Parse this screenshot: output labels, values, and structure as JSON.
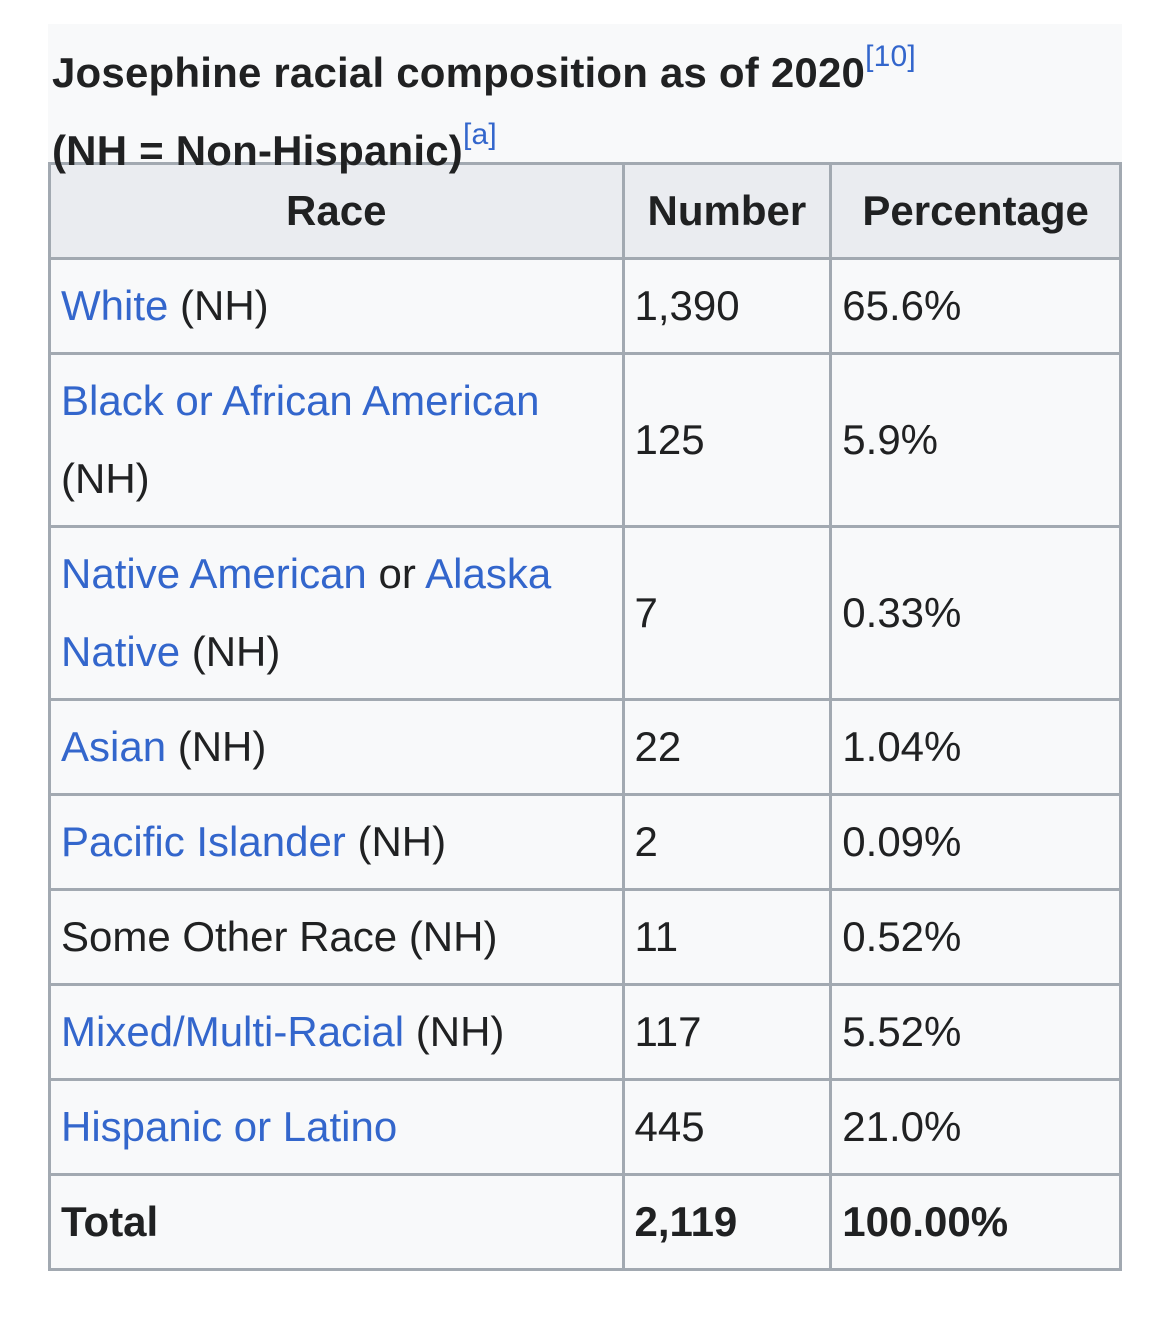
{
  "caption": {
    "title": "Josephine racial composition as of 2020",
    "ref1": "[10]",
    "subtitle": "(NH = Non-Hispanic)",
    "ref2": "[a]"
  },
  "headers": [
    "Race",
    "Number",
    "Percentage"
  ],
  "rows": [
    {
      "link": "White",
      "suffix": " (NH)",
      "number": "1,390",
      "percentage": "65.6%"
    },
    {
      "link": "Black or African American",
      "suffix": " (NH)",
      "number": "125",
      "percentage": "5.9%"
    },
    {
      "link": "Native American",
      "middle": " or ",
      "link2": "Alaska Native",
      "suffix": " (NH)",
      "number": "7",
      "percentage": "0.33%"
    },
    {
      "link": "Asian",
      "suffix": " (NH)",
      "number": "22",
      "percentage": "1.04%"
    },
    {
      "link": "Pacific Islander",
      "suffix": " (NH)",
      "number": "2",
      "percentage": "0.09%"
    },
    {
      "plain": "Some Other Race (NH)",
      "number": "11",
      "percentage": "0.52%"
    },
    {
      "link": "Mixed/Multi-Racial",
      "suffix": " (NH)",
      "number": "117",
      "percentage": "5.52%"
    },
    {
      "link": "Hispanic or Latino",
      "number": "445",
      "percentage": "21.0%"
    }
  ],
  "total": {
    "label": "Total",
    "number": "2,119",
    "percentage": "100.00%"
  }
}
